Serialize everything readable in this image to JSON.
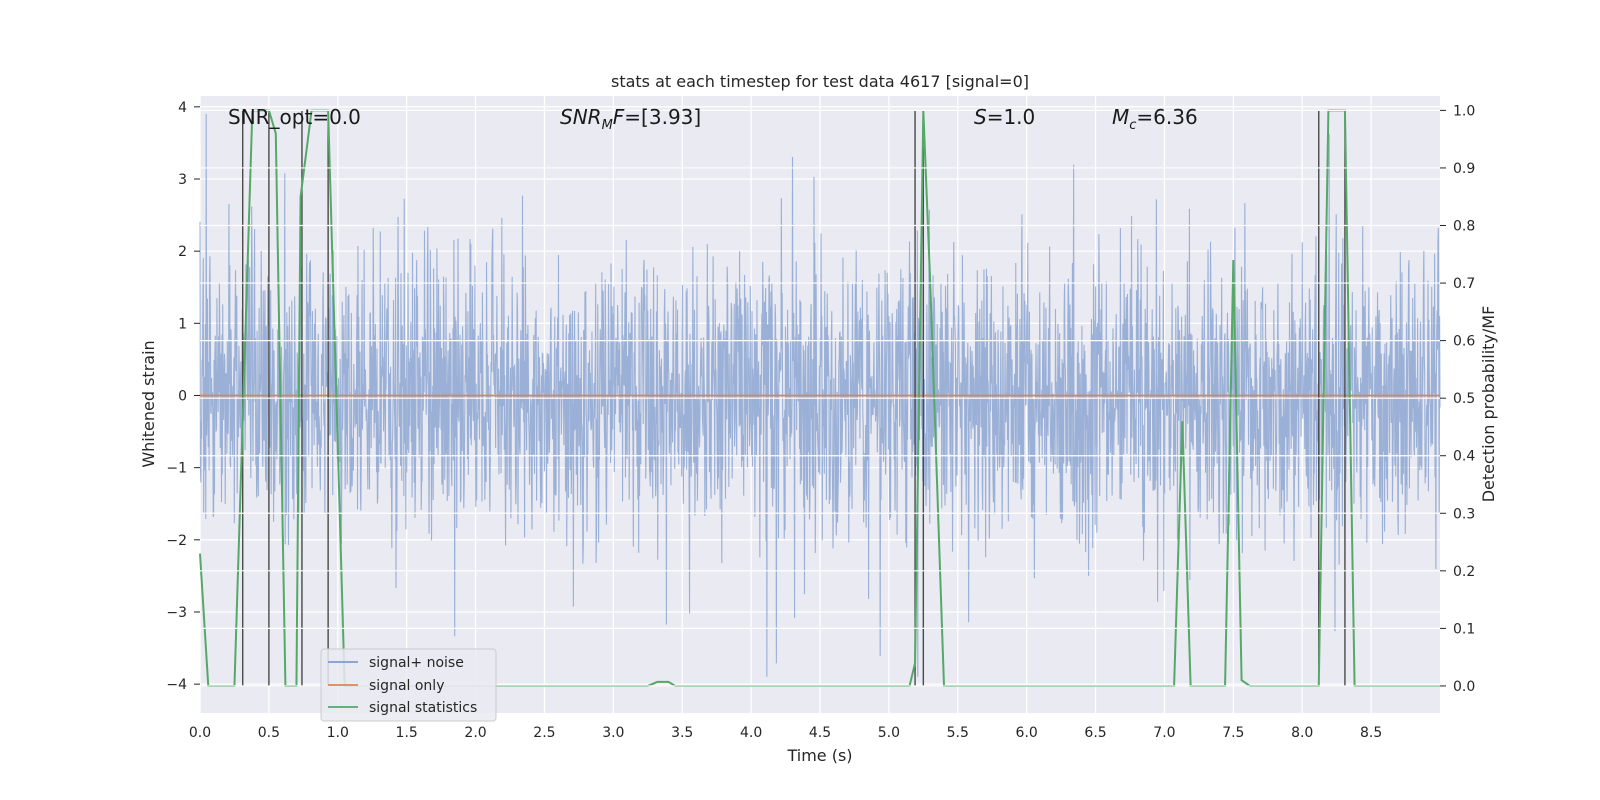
{
  "chart_data": {
    "type": "line",
    "title": "stats at each timestep for test data 4617 [signal=0]",
    "xlabel": "Time (s)",
    "ylabel": "Whitened strain",
    "y2label": "Detection probability/MF",
    "xlim": [
      0.0,
      9.0
    ],
    "ylim": [
      -4.4,
      4.15
    ],
    "y2lim": [
      -0.047,
      1.025
    ],
    "xticks": [
      "0.0",
      "0.5",
      "1.0",
      "1.5",
      "2.0",
      "2.5",
      "3.0",
      "3.5",
      "4.0",
      "4.5",
      "5.0",
      "5.5",
      "6.0",
      "6.5",
      "7.0",
      "7.5",
      "8.0",
      "8.5"
    ],
    "yticks": [
      "4",
      "3",
      "2",
      "1",
      "0",
      "−1",
      "−2",
      "−3",
      "−4"
    ],
    "y2ticks": [
      "1.0",
      "0.9",
      "0.8",
      "0.7",
      "0.6",
      "0.5",
      "0.4",
      "0.3",
      "0.2",
      "0.1",
      "0.0"
    ],
    "grid": true,
    "legend_placement": "lower-left",
    "annotations": {
      "snr_opt": "SNR_opt=0.0",
      "snr_mf": "=[3.93]",
      "s": "=1.0",
      "mc": "=6.36"
    },
    "series": [
      {
        "name": "signal+ noise",
        "color": "#7f9ccc",
        "description_values": "dense noise, amplitude about ±2.5, spikes to ±4",
        "seed": 4617
      },
      {
        "name": "signal only",
        "color": "#dd8452",
        "x": [
          0.0,
          9.0
        ],
        "y": [
          0.0,
          0.0
        ]
      },
      {
        "name": "signal statistics",
        "color": "#55a868",
        "x": [
          0.0,
          0.06,
          0.25,
          0.38,
          0.5,
          0.55,
          0.62,
          0.7,
          0.73,
          0.81,
          0.93,
          1.05,
          2.0,
          3.0,
          3.25,
          3.32,
          3.4,
          3.45,
          4.0,
          5.0,
          5.15,
          5.19,
          5.25,
          5.3,
          5.4,
          5.5,
          6.0,
          7.0,
          7.07,
          7.13,
          7.19,
          7.3,
          7.44,
          7.5,
          7.56,
          7.62,
          8.0,
          8.12,
          8.19,
          8.25,
          8.31,
          8.38,
          8.5,
          9.0
        ],
        "y": [
          0.23,
          0.0,
          0.0,
          1.0,
          1.0,
          0.96,
          0.0,
          0.0,
          0.85,
          1.0,
          1.0,
          0.0,
          0.0,
          0.0,
          0.0,
          0.007,
          0.007,
          0.0,
          0.0,
          0.0,
          0.0,
          0.04,
          1.0,
          0.7,
          0.0,
          0.0,
          0.0,
          0.0,
          0.0,
          0.46,
          0.0,
          0.0,
          0.0,
          0.74,
          0.01,
          0.0,
          0.0,
          0.0,
          1.0,
          1.0,
          1.0,
          0.0,
          0.0,
          0.0
        ]
      }
    ],
    "vertical_markers": {
      "color": "#4a4a4a",
      "x": [
        0.31,
        0.5,
        0.74,
        0.93,
        5.19,
        5.25,
        8.12,
        8.31
      ],
      "y2_top": 1.0,
      "y2_bottom": 0.0
    }
  }
}
